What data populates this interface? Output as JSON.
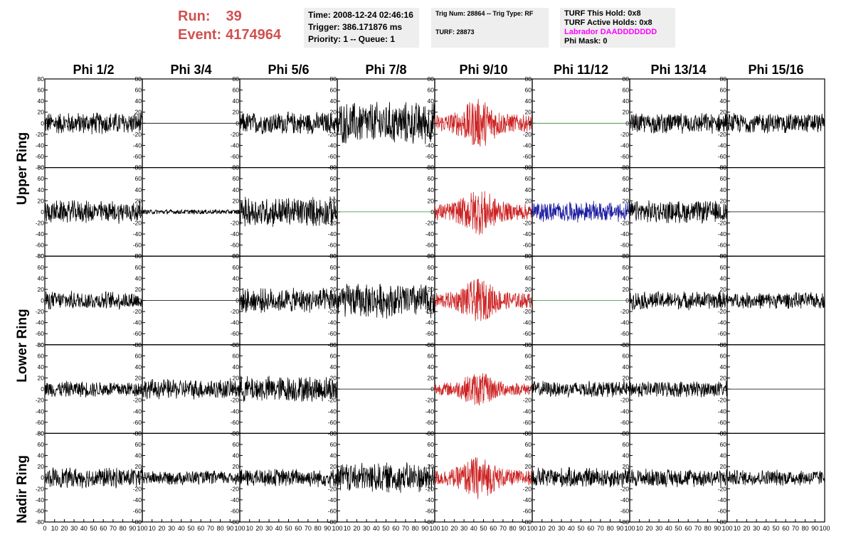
{
  "header": {
    "run_label": "Run:",
    "run_value": "39",
    "event_label": "Event:",
    "event_value": "4174964",
    "time": "Time: 2008-12-24 02:46:16",
    "trigger": "Trigger: 386.171876 ms",
    "priority": "Priority: 1 -- Queue: 1",
    "trig_num": "Trig Num: 28864 -- Trig Type: RF",
    "turf": "TURF: 28873",
    "turf_hold": "TURF This Hold: 0x8",
    "turf_active": "TURF Active Holds: 0x8",
    "labrador": "Labrador DAADDDDDDD",
    "phi_mask": "Phi Mask: 0"
  },
  "colors": {
    "header_red": "#d05050",
    "trace_black": "#000000",
    "trace_red": "#cc2222",
    "trace_blue": "#1a1aa0",
    "flat_green": "#2e8b2e",
    "labrador_magenta": "#ff00ff",
    "info_bg": "#eeeeee"
  },
  "ring_labels": [
    "Upper Ring",
    "Lower Ring",
    "Nadir Ring"
  ],
  "chart_data": {
    "type": "line",
    "columns": [
      "Phi 1/2",
      "Phi 3/4",
      "Phi 5/6",
      "Phi 7/8",
      "Phi 9/10",
      "Phi 11/12",
      "Phi 13/14",
      "Phi 15/16"
    ],
    "xlim": [
      0,
      100
    ],
    "ylim": [
      -80,
      80
    ],
    "x_ticks": [
      "0",
      "10",
      "20",
      "30",
      "40",
      "50",
      "60",
      "70",
      "80",
      "90",
      "100"
    ],
    "x_ticks_first_column": [
      "0",
      "10",
      "20",
      "30",
      "40",
      "50",
      "60",
      "70",
      "80",
      "90",
      "100"
    ],
    "y_ticks": [
      "80",
      "60",
      "40",
      "20",
      "0",
      "-20",
      "-40",
      "-60",
      "-80"
    ],
    "cells": [
      [
        {
          "style": "noise",
          "amp": 22,
          "color": "black"
        },
        {
          "style": "flat",
          "color": "black"
        },
        {
          "style": "noise",
          "amp": 22,
          "color": "black"
        },
        {
          "style": "noise",
          "amp": 42,
          "color": "black"
        },
        {
          "style": "pulse",
          "amp": 32,
          "color": "red"
        },
        {
          "style": "flat",
          "color": "green"
        },
        {
          "style": "noise",
          "amp": 20,
          "color": "black"
        },
        {
          "style": "noise",
          "amp": 20,
          "color": "black"
        }
      ],
      [
        {
          "style": "noise",
          "amp": 22,
          "color": "black"
        },
        {
          "style": "tiny",
          "amp": 4,
          "color": "black"
        },
        {
          "style": "noise",
          "amp": 30,
          "color": "black"
        },
        {
          "style": "flat",
          "color": "green"
        },
        {
          "style": "pulse",
          "amp": 30,
          "color": "red"
        },
        {
          "style": "noise",
          "amp": 20,
          "color": "blue"
        },
        {
          "style": "noise",
          "amp": 22,
          "color": "black"
        },
        {
          "style": "flat",
          "color": "black"
        }
      ],
      [
        {
          "style": "noise",
          "amp": 18,
          "color": "black"
        },
        {
          "style": "flat",
          "color": "black"
        },
        {
          "style": "noise",
          "amp": 24,
          "color": "black"
        },
        {
          "style": "noise",
          "amp": 34,
          "color": "black"
        },
        {
          "style": "pulse",
          "amp": 28,
          "color": "red"
        },
        {
          "style": "flat",
          "color": "green"
        },
        {
          "style": "noise",
          "amp": 18,
          "color": "black"
        },
        {
          "style": "noise",
          "amp": 16,
          "color": "black"
        }
      ],
      [
        {
          "style": "noise",
          "amp": 16,
          "color": "black"
        },
        {
          "style": "noise",
          "amp": 20,
          "color": "black"
        },
        {
          "style": "noise",
          "amp": 26,
          "color": "black"
        },
        {
          "style": "flat",
          "color": "black"
        },
        {
          "style": "pulse",
          "amp": 22,
          "color": "red"
        },
        {
          "style": "noise",
          "amp": 16,
          "color": "black"
        },
        {
          "style": "noise",
          "amp": 16,
          "color": "black"
        },
        {
          "style": "flat",
          "color": "black"
        }
      ],
      [
        {
          "style": "noise",
          "amp": 20,
          "color": "black"
        },
        {
          "style": "noise",
          "amp": 14,
          "color": "black"
        },
        {
          "style": "noise",
          "amp": 18,
          "color": "black"
        },
        {
          "style": "noise",
          "amp": 30,
          "color": "black"
        },
        {
          "style": "pulse",
          "amp": 28,
          "color": "red"
        },
        {
          "style": "noise",
          "amp": 20,
          "color": "black"
        },
        {
          "style": "noise",
          "amp": 18,
          "color": "black"
        },
        {
          "style": "noise",
          "amp": 16,
          "color": "black"
        }
      ]
    ]
  }
}
